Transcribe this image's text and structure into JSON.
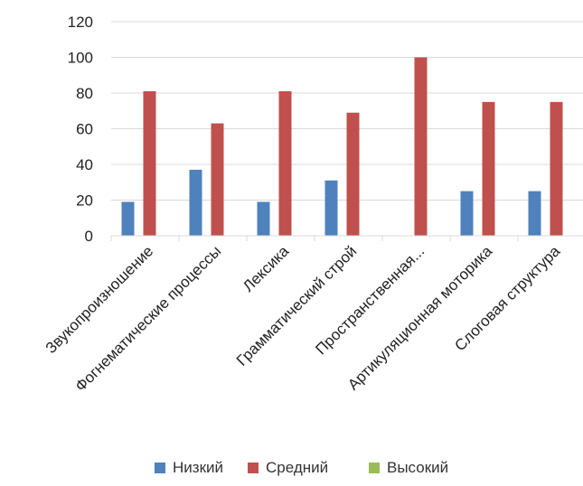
{
  "chart_data": {
    "type": "bar",
    "categories": [
      "Звукопроизношение",
      "Фогнематические процессы",
      "Лексика",
      "Грамматический строй",
      "Пространственная...",
      "Артикуляционная моторика",
      "Слоговая структура"
    ],
    "series": [
      {
        "name": "Низкий",
        "color": "#4f81bd",
        "values": [
          19,
          37,
          19,
          31,
          0,
          25,
          25
        ]
      },
      {
        "name": "Средний",
        "color": "#c0504d",
        "values": [
          81,
          63,
          81,
          69,
          100,
          75,
          75
        ]
      },
      {
        "name": "Высокий",
        "color": "#9bbb59",
        "values": [
          0,
          0,
          0,
          0,
          0,
          0,
          0
        ]
      }
    ],
    "ylim": [
      0,
      120
    ],
    "yticks": [
      0,
      20,
      40,
      60,
      80,
      100,
      120
    ],
    "grid": true,
    "legend": "bottom"
  }
}
